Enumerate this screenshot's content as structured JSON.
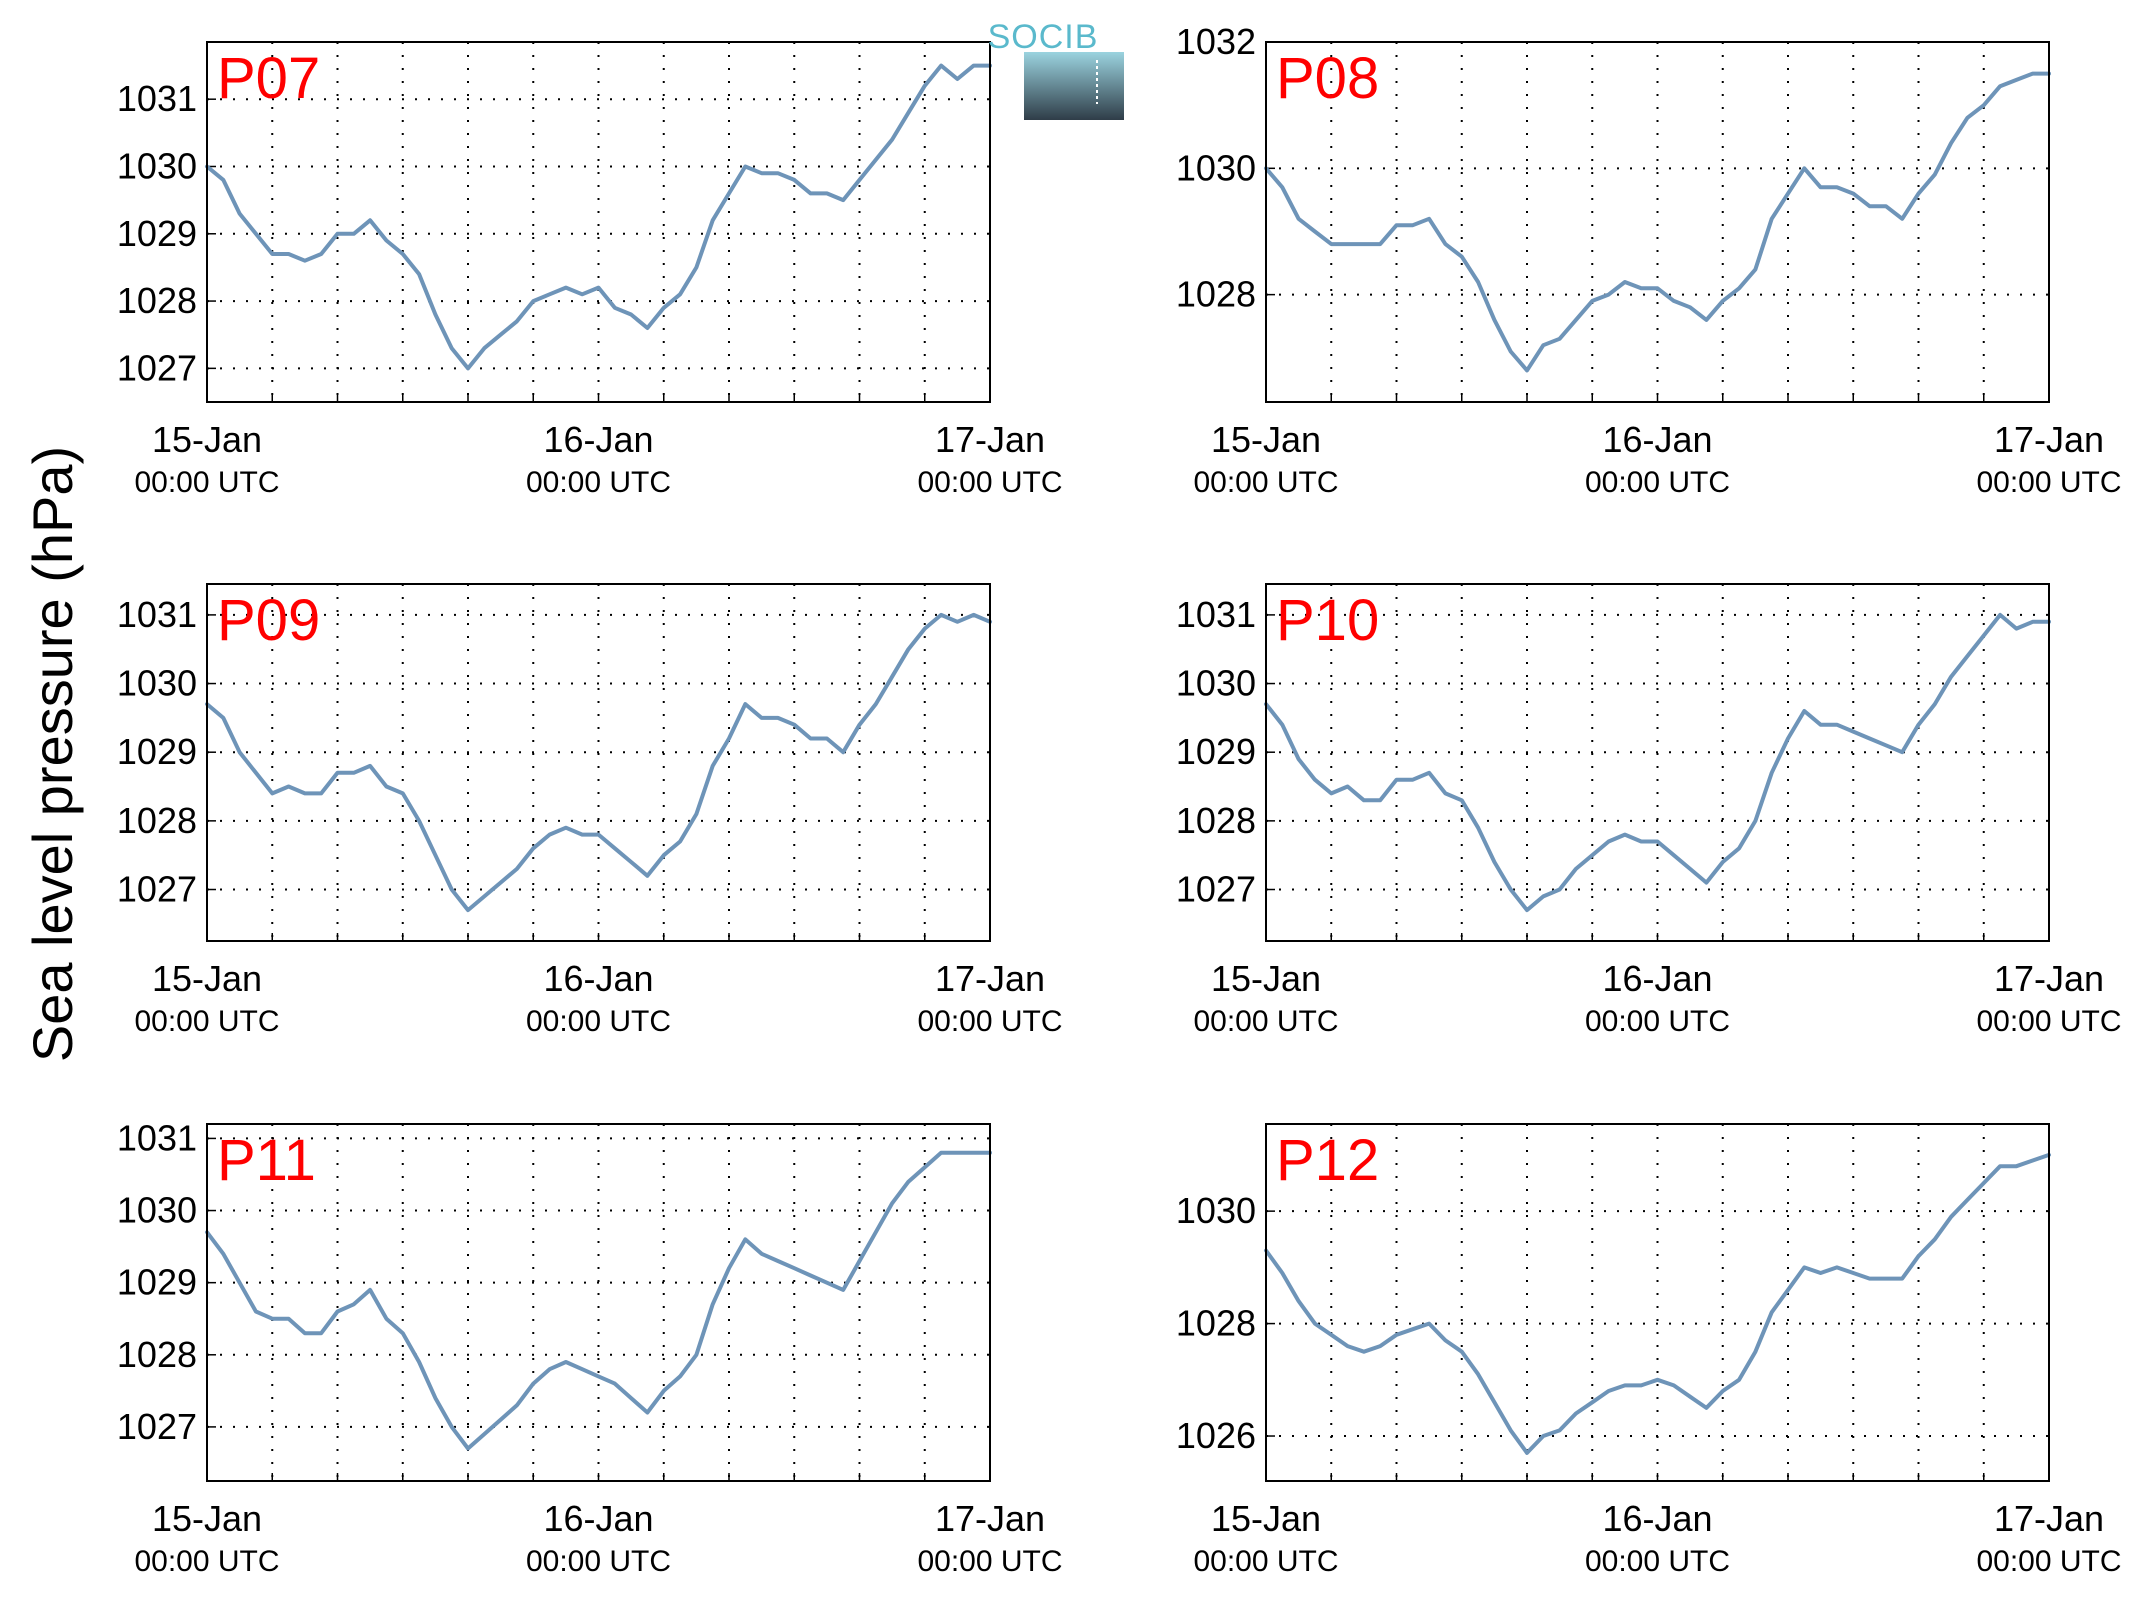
{
  "figure": {
    "ylabel": "Sea level pressure (hPa)",
    "line_color": "#6e94b8",
    "label_color": "#ff0000",
    "logo": {
      "text": "SOCIB",
      "icon": "socib-logo-icon",
      "colors": {
        "text": "#5ab9cc",
        "top": "#9bd3df",
        "bottom": "#2f3d48"
      }
    }
  },
  "chart_data": [
    {
      "type": "line",
      "title": "P07",
      "xlabel": "",
      "ylabel": "",
      "xlim": [
        0,
        48
      ],
      "ylim": [
        1026.5,
        1031.85
      ],
      "yticks": [
        1027,
        1028,
        1029,
        1030,
        1031
      ],
      "xticks": [
        0,
        24,
        48
      ],
      "xticklabels": [
        [
          "15-Jan",
          "00:00 UTC"
        ],
        [
          "16-Jan",
          "00:00 UTC"
        ],
        [
          "17-Jan",
          "00:00 UTC"
        ]
      ],
      "grid": true,
      "x": [
        0,
        1,
        2,
        3,
        4,
        5,
        6,
        7,
        8,
        9,
        10,
        11,
        12,
        13,
        14,
        15,
        16,
        17,
        18,
        19,
        20,
        21,
        22,
        23,
        24,
        25,
        26,
        27,
        28,
        29,
        30,
        31,
        32,
        33,
        34,
        35,
        36,
        37,
        38,
        39,
        40,
        41,
        42,
        43,
        44,
        45,
        46,
        47,
        48
      ],
      "series": [
        {
          "values": [
            1030.0,
            1029.8,
            1029.3,
            1029.0,
            1028.7,
            1028.7,
            1028.6,
            1028.7,
            1029.0,
            1029.0,
            1029.2,
            1028.9,
            1028.7,
            1028.4,
            1027.8,
            1027.3,
            1027.0,
            1027.3,
            1027.5,
            1027.7,
            1028.0,
            1028.1,
            1028.2,
            1028.1,
            1028.2,
            1027.9,
            1027.8,
            1027.6,
            1027.9,
            1028.1,
            1028.5,
            1029.2,
            1029.6,
            1030.0,
            1029.9,
            1029.9,
            1029.8,
            1029.6,
            1029.6,
            1029.5,
            1029.8,
            1030.1,
            1030.4,
            1030.8,
            1031.2,
            1031.5,
            1031.3,
            1031.5,
            1031.5
          ]
        }
      ]
    },
    {
      "type": "line",
      "title": "P08",
      "xlabel": "",
      "ylabel": "",
      "xlim": [
        0,
        48
      ],
      "ylim": [
        1026.3,
        1032.0
      ],
      "yticks": [
        1028,
        1030,
        1032
      ],
      "xticks": [
        0,
        24,
        48
      ],
      "xticklabels": [
        [
          "15-Jan",
          "00:00 UTC"
        ],
        [
          "16-Jan",
          "00:00 UTC"
        ],
        [
          "17-Jan",
          "00:00 UTC"
        ]
      ],
      "grid": true,
      "x": [
        0,
        1,
        2,
        3,
        4,
        5,
        6,
        7,
        8,
        9,
        10,
        11,
        12,
        13,
        14,
        15,
        16,
        17,
        18,
        19,
        20,
        21,
        22,
        23,
        24,
        25,
        26,
        27,
        28,
        29,
        30,
        31,
        32,
        33,
        34,
        35,
        36,
        37,
        38,
        39,
        40,
        41,
        42,
        43,
        44,
        45,
        46,
        47,
        48
      ],
      "series": [
        {
          "values": [
            1030.0,
            1029.7,
            1029.2,
            1029.0,
            1028.8,
            1028.8,
            1028.8,
            1028.8,
            1029.1,
            1029.1,
            1029.2,
            1028.8,
            1028.6,
            1028.2,
            1027.6,
            1027.1,
            1026.8,
            1027.2,
            1027.3,
            1027.6,
            1027.9,
            1028.0,
            1028.2,
            1028.1,
            1028.1,
            1027.9,
            1027.8,
            1027.6,
            1027.9,
            1028.1,
            1028.4,
            1029.2,
            1029.6,
            1030.0,
            1029.7,
            1029.7,
            1029.6,
            1029.4,
            1029.4,
            1029.2,
            1029.6,
            1029.9,
            1030.4,
            1030.8,
            1031.0,
            1031.3,
            1031.4,
            1031.5,
            1031.5
          ]
        }
      ]
    },
    {
      "type": "line",
      "title": "P09",
      "xlabel": "",
      "ylabel": "",
      "xlim": [
        0,
        48
      ],
      "ylim": [
        1026.25,
        1031.45
      ],
      "yticks": [
        1027,
        1028,
        1029,
        1030,
        1031
      ],
      "xticks": [
        0,
        24,
        48
      ],
      "xticklabels": [
        [
          "15-Jan",
          "00:00 UTC"
        ],
        [
          "16-Jan",
          "00:00 UTC"
        ],
        [
          "17-Jan",
          "00:00 UTC"
        ]
      ],
      "grid": true,
      "x": [
        0,
        1,
        2,
        3,
        4,
        5,
        6,
        7,
        8,
        9,
        10,
        11,
        12,
        13,
        14,
        15,
        16,
        17,
        18,
        19,
        20,
        21,
        22,
        23,
        24,
        25,
        26,
        27,
        28,
        29,
        30,
        31,
        32,
        33,
        34,
        35,
        36,
        37,
        38,
        39,
        40,
        41,
        42,
        43,
        44,
        45,
        46,
        47,
        48
      ],
      "series": [
        {
          "values": [
            1029.7,
            1029.5,
            1029.0,
            1028.7,
            1028.4,
            1028.5,
            1028.4,
            1028.4,
            1028.7,
            1028.7,
            1028.8,
            1028.5,
            1028.4,
            1028.0,
            1027.5,
            1027.0,
            1026.7,
            1026.9,
            1027.1,
            1027.3,
            1027.6,
            1027.8,
            1027.9,
            1027.8,
            1027.8,
            1027.6,
            1027.4,
            1027.2,
            1027.5,
            1027.7,
            1028.1,
            1028.8,
            1029.2,
            1029.7,
            1029.5,
            1029.5,
            1029.4,
            1029.2,
            1029.2,
            1029.0,
            1029.4,
            1029.7,
            1030.1,
            1030.5,
            1030.8,
            1031.0,
            1030.9,
            1031.0,
            1030.9
          ]
        }
      ]
    },
    {
      "type": "line",
      "title": "P10",
      "xlabel": "",
      "ylabel": "",
      "xlim": [
        0,
        48
      ],
      "ylim": [
        1026.25,
        1031.45
      ],
      "yticks": [
        1027,
        1028,
        1029,
        1030,
        1031
      ],
      "xticks": [
        0,
        24,
        48
      ],
      "xticklabels": [
        [
          "15-Jan",
          "00:00 UTC"
        ],
        [
          "16-Jan",
          "00:00 UTC"
        ],
        [
          "17-Jan",
          "00:00 UTC"
        ]
      ],
      "grid": true,
      "x": [
        0,
        1,
        2,
        3,
        4,
        5,
        6,
        7,
        8,
        9,
        10,
        11,
        12,
        13,
        14,
        15,
        16,
        17,
        18,
        19,
        20,
        21,
        22,
        23,
        24,
        25,
        26,
        27,
        28,
        29,
        30,
        31,
        32,
        33,
        34,
        35,
        36,
        37,
        38,
        39,
        40,
        41,
        42,
        43,
        44,
        45,
        46,
        47,
        48
      ],
      "series": [
        {
          "values": [
            1029.7,
            1029.4,
            1028.9,
            1028.6,
            1028.4,
            1028.5,
            1028.3,
            1028.3,
            1028.6,
            1028.6,
            1028.7,
            1028.4,
            1028.3,
            1027.9,
            1027.4,
            1027.0,
            1026.7,
            1026.9,
            1027.0,
            1027.3,
            1027.5,
            1027.7,
            1027.8,
            1027.7,
            1027.7,
            1027.5,
            1027.3,
            1027.1,
            1027.4,
            1027.6,
            1028.0,
            1028.7,
            1029.2,
            1029.6,
            1029.4,
            1029.4,
            1029.3,
            1029.2,
            1029.1,
            1029.0,
            1029.4,
            1029.7,
            1030.1,
            1030.4,
            1030.7,
            1031.0,
            1030.8,
            1030.9,
            1030.9
          ]
        }
      ]
    },
    {
      "type": "line",
      "title": "P11",
      "xlabel": "",
      "ylabel": "",
      "xlim": [
        0,
        48
      ],
      "ylim": [
        1026.25,
        1031.2
      ],
      "yticks": [
        1027,
        1028,
        1029,
        1030,
        1031
      ],
      "xticks": [
        0,
        24,
        48
      ],
      "xticklabels": [
        [
          "15-Jan",
          "00:00 UTC"
        ],
        [
          "16-Jan",
          "00:00 UTC"
        ],
        [
          "17-Jan",
          "00:00 UTC"
        ]
      ],
      "grid": true,
      "x": [
        0,
        1,
        2,
        3,
        4,
        5,
        6,
        7,
        8,
        9,
        10,
        11,
        12,
        13,
        14,
        15,
        16,
        17,
        18,
        19,
        20,
        21,
        22,
        23,
        24,
        25,
        26,
        27,
        28,
        29,
        30,
        31,
        32,
        33,
        34,
        35,
        36,
        37,
        38,
        39,
        40,
        41,
        42,
        43,
        44,
        45,
        46,
        47,
        48
      ],
      "series": [
        {
          "values": [
            1029.7,
            1029.4,
            1029.0,
            1028.6,
            1028.5,
            1028.5,
            1028.3,
            1028.3,
            1028.6,
            1028.7,
            1028.9,
            1028.5,
            1028.3,
            1027.9,
            1027.4,
            1027.0,
            1026.7,
            1026.9,
            1027.1,
            1027.3,
            1027.6,
            1027.8,
            1027.9,
            1027.8,
            1027.7,
            1027.6,
            1027.4,
            1027.2,
            1027.5,
            1027.7,
            1028.0,
            1028.7,
            1029.2,
            1029.6,
            1029.4,
            1029.3,
            1029.2,
            1029.1,
            1029.0,
            1028.9,
            1029.3,
            1029.7,
            1030.1,
            1030.4,
            1030.6,
            1030.8,
            1030.8,
            1030.8,
            1030.8
          ]
        }
      ]
    },
    {
      "type": "line",
      "title": "P12",
      "xlabel": "",
      "ylabel": "",
      "xlim": [
        0,
        48
      ],
      "ylim": [
        1025.2,
        1031.55
      ],
      "yticks": [
        1026,
        1028,
        1030
      ],
      "xticks": [
        0,
        24,
        48
      ],
      "xticklabels": [
        [
          "15-Jan",
          "00:00 UTC"
        ],
        [
          "16-Jan",
          "00:00 UTC"
        ],
        [
          "17-Jan",
          "00:00 UTC"
        ]
      ],
      "grid": true,
      "x": [
        0,
        1,
        2,
        3,
        4,
        5,
        6,
        7,
        8,
        9,
        10,
        11,
        12,
        13,
        14,
        15,
        16,
        17,
        18,
        19,
        20,
        21,
        22,
        23,
        24,
        25,
        26,
        27,
        28,
        29,
        30,
        31,
        32,
        33,
        34,
        35,
        36,
        37,
        38,
        39,
        40,
        41,
        42,
        43,
        44,
        45,
        46,
        47,
        48
      ],
      "series": [
        {
          "values": [
            1029.3,
            1028.9,
            1028.4,
            1028.0,
            1027.8,
            1027.6,
            1027.5,
            1027.6,
            1027.8,
            1027.9,
            1028.0,
            1027.7,
            1027.5,
            1027.1,
            1026.6,
            1026.1,
            1025.7,
            1026.0,
            1026.1,
            1026.4,
            1026.6,
            1026.8,
            1026.9,
            1026.9,
            1027.0,
            1026.9,
            1026.7,
            1026.5,
            1026.8,
            1027.0,
            1027.5,
            1028.2,
            1028.6,
            1029.0,
            1028.9,
            1029.0,
            1028.9,
            1028.8,
            1028.8,
            1028.8,
            1029.2,
            1029.5,
            1029.9,
            1030.2,
            1030.5,
            1030.8,
            1030.8,
            1030.9,
            1031.0
          ]
        }
      ]
    }
  ]
}
